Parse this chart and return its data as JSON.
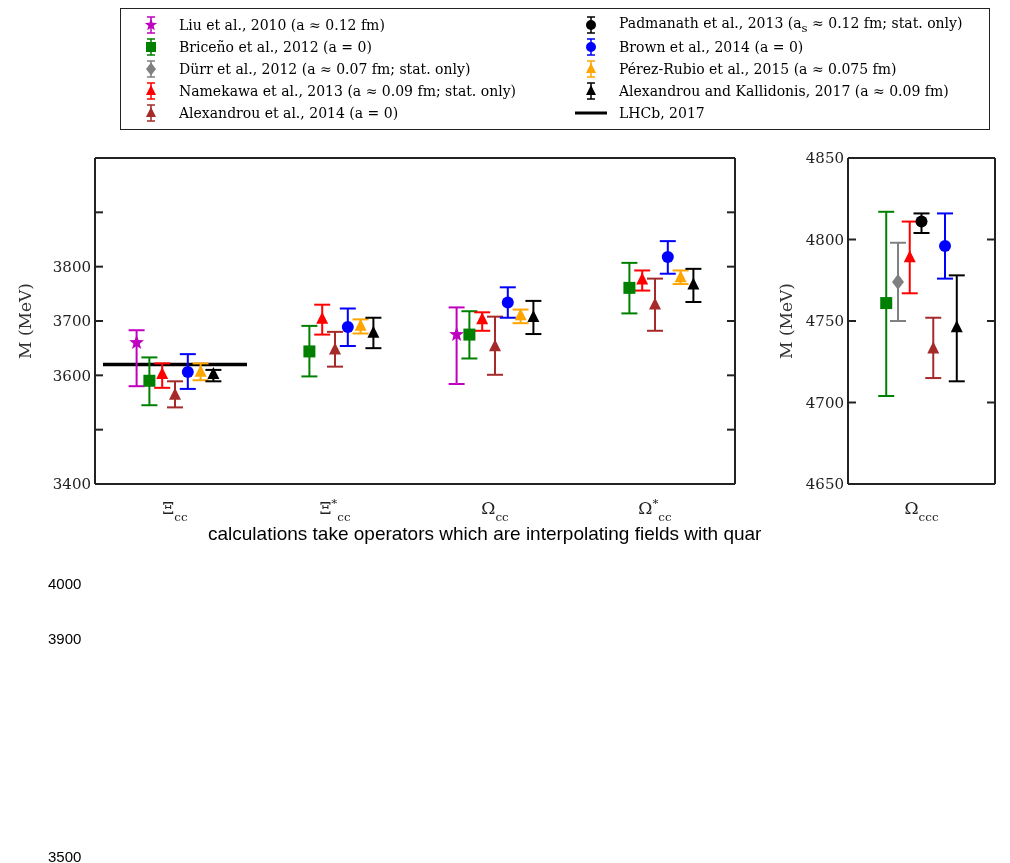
{
  "chart_data": [
    {
      "type": "scatter",
      "ylabel": "M (MeV)",
      "legend": "top",
      "categories": [
        "Ξ$_{cc}$",
        "Ξ$^{*}$$_{cc}$",
        "Ω$_{cc}$",
        "Ω$^{*}$$_{cc}$"
      ],
      "ylim": [
        3400,
        4000
      ],
      "yticks": [
        3400,
        {
          "value": 3500,
          "label": null
        },
        3600,
        3700,
        3800,
        {
          "value": 3900,
          "label": null
        }
      ],
      "series": [
        {
          "name": "Liu et al., 2010 (a ≈ 0.12 fm)",
          "color": "#bf00bf",
          "marker": "star",
          "values": [
            3660,
            null,
            3675,
            null
          ],
          "errors": [
            [
              3580,
              3683
            ],
            null,
            [
              3584,
              3725
            ],
            null
          ]
        },
        {
          "name": "Briceño et al., 2012 (a = 0)",
          "color": "#008000",
          "marker": "square",
          "values": [
            3590,
            3644,
            3675,
            3761
          ],
          "errors": [
            [
              3545,
              3633
            ],
            [
              3598,
              3691
            ],
            [
              3631,
              3718
            ],
            [
              3714,
              3807
            ]
          ]
        },
        {
          "name": "Dürr et al., 2012 (a ≈ 0.07 fm; stat. only)",
          "color": "#808080",
          "marker": "diamond",
          "values": [
            null,
            null,
            null,
            null
          ]
        },
        {
          "name": "Namekawa et al., 2013 (a ≈ 0.09 fm; stat. only)",
          "color": "#ff0000",
          "marker": "triangle",
          "values": [
            3602,
            3704,
            3703,
            3776
          ],
          "errors": [
            [
              3577,
              3622
            ],
            [
              3675,
              3730
            ],
            [
              3682,
              3716
            ],
            [
              3756,
              3793
            ]
          ]
        },
        {
          "name": "Alexandrou et al., 2014 (a = 0)",
          "color": "#a52a2a",
          "marker": "triangle",
          "values": [
            3564,
            3647,
            3653,
            3730
          ],
          "errors": [
            [
              3541,
              3589
            ],
            [
              3616,
              3680
            ],
            [
              3601,
              3708
            ],
            [
              3682,
              3778
            ]
          ]
        },
        {
          "name": "Padmanath et al., 2013 (a$_{s}$ ≈ 0.12 fm; stat. only)",
          "color": "#000000",
          "marker": "circle",
          "values": [
            null,
            null,
            null,
            null
          ]
        },
        {
          "name": "Brown et al., 2014 (a = 0)",
          "color": "#0000ff",
          "marker": "circle",
          "values": [
            3606,
            3689,
            3734,
            3818
          ],
          "errors": [
            [
              3575,
              3639
            ],
            [
              3654,
              3723
            ],
            [
              3706,
              3762
            ],
            [
              3787,
              3847
            ]
          ]
        },
        {
          "name": "Pérez-Rubio et al., 2015 (a ≈ 0.075 fm)",
          "color": "#ffa500",
          "marker": "triangle",
          "values": [
            3606,
            3691,
            3710,
            3780
          ],
          "errors": [
            [
              3591,
              3622
            ],
            [
              3677,
              3703
            ],
            [
              3696,
              3721
            ],
            [
              3768,
              3793
            ]
          ]
        },
        {
          "name": "Alexandrou and Kallidonis, 2017 (a ≈ 0.09 fm)",
          "color": "#000000",
          "marker": "triangle",
          "values": [
            3602,
            3678,
            3707,
            3767
          ],
          "errors": [
            [
              3589,
              3610
            ],
            [
              3650,
              3706
            ],
            [
              3676,
              3737
            ],
            [
              3735,
              3796
            ]
          ]
        }
      ],
      "ref_lines": [
        {
          "axis": "y",
          "value": 3620,
          "label": "LHCb, 2017",
          "color": "#000000"
        }
      ],
      "annotations": [
        "calculations take operators which are interpolating fields with quar",
        "4000",
        "3900",
        "3500"
      ]
    },
    {
      "type": "scatter",
      "ylabel": "M (MeV)",
      "categories": [
        "Ω$_{ccc}$"
      ],
      "ylim": [
        4650,
        4850
      ],
      "yticks": [
        4650,
        4700,
        4750,
        4800,
        4850
      ],
      "series": [
        {
          "color": "#008000",
          "marker": "square",
          "values": [
            4761
          ],
          "errors": [
            [
              4704,
              4817
            ]
          ]
        },
        {
          "color": "#808080",
          "marker": "diamond",
          "values": [
            4774
          ],
          "errors": [
            [
              4750,
              4798
            ]
          ]
        },
        {
          "color": "#ff0000",
          "marker": "triangle",
          "values": [
            4789
          ],
          "errors": [
            [
              4767,
              4811
            ]
          ]
        },
        {
          "color": "#000000",
          "marker": "circle",
          "values": [
            4811
          ],
          "errors": [
            [
              4804,
              4816
            ]
          ]
        },
        {
          "color": "#a52a2a",
          "marker": "triangle",
          "values": [
            4733
          ],
          "errors": [
            [
              4715,
              4752
            ]
          ]
        },
        {
          "color": "#0000ff",
          "marker": "circle",
          "values": [
            4796
          ],
          "errors": [
            [
              4776,
              4816
            ]
          ]
        },
        {
          "color": "#000000",
          "marker": "triangle",
          "values": [
            4746
          ],
          "errors": [
            [
              4713,
              4778
            ]
          ]
        }
      ]
    }
  ]
}
